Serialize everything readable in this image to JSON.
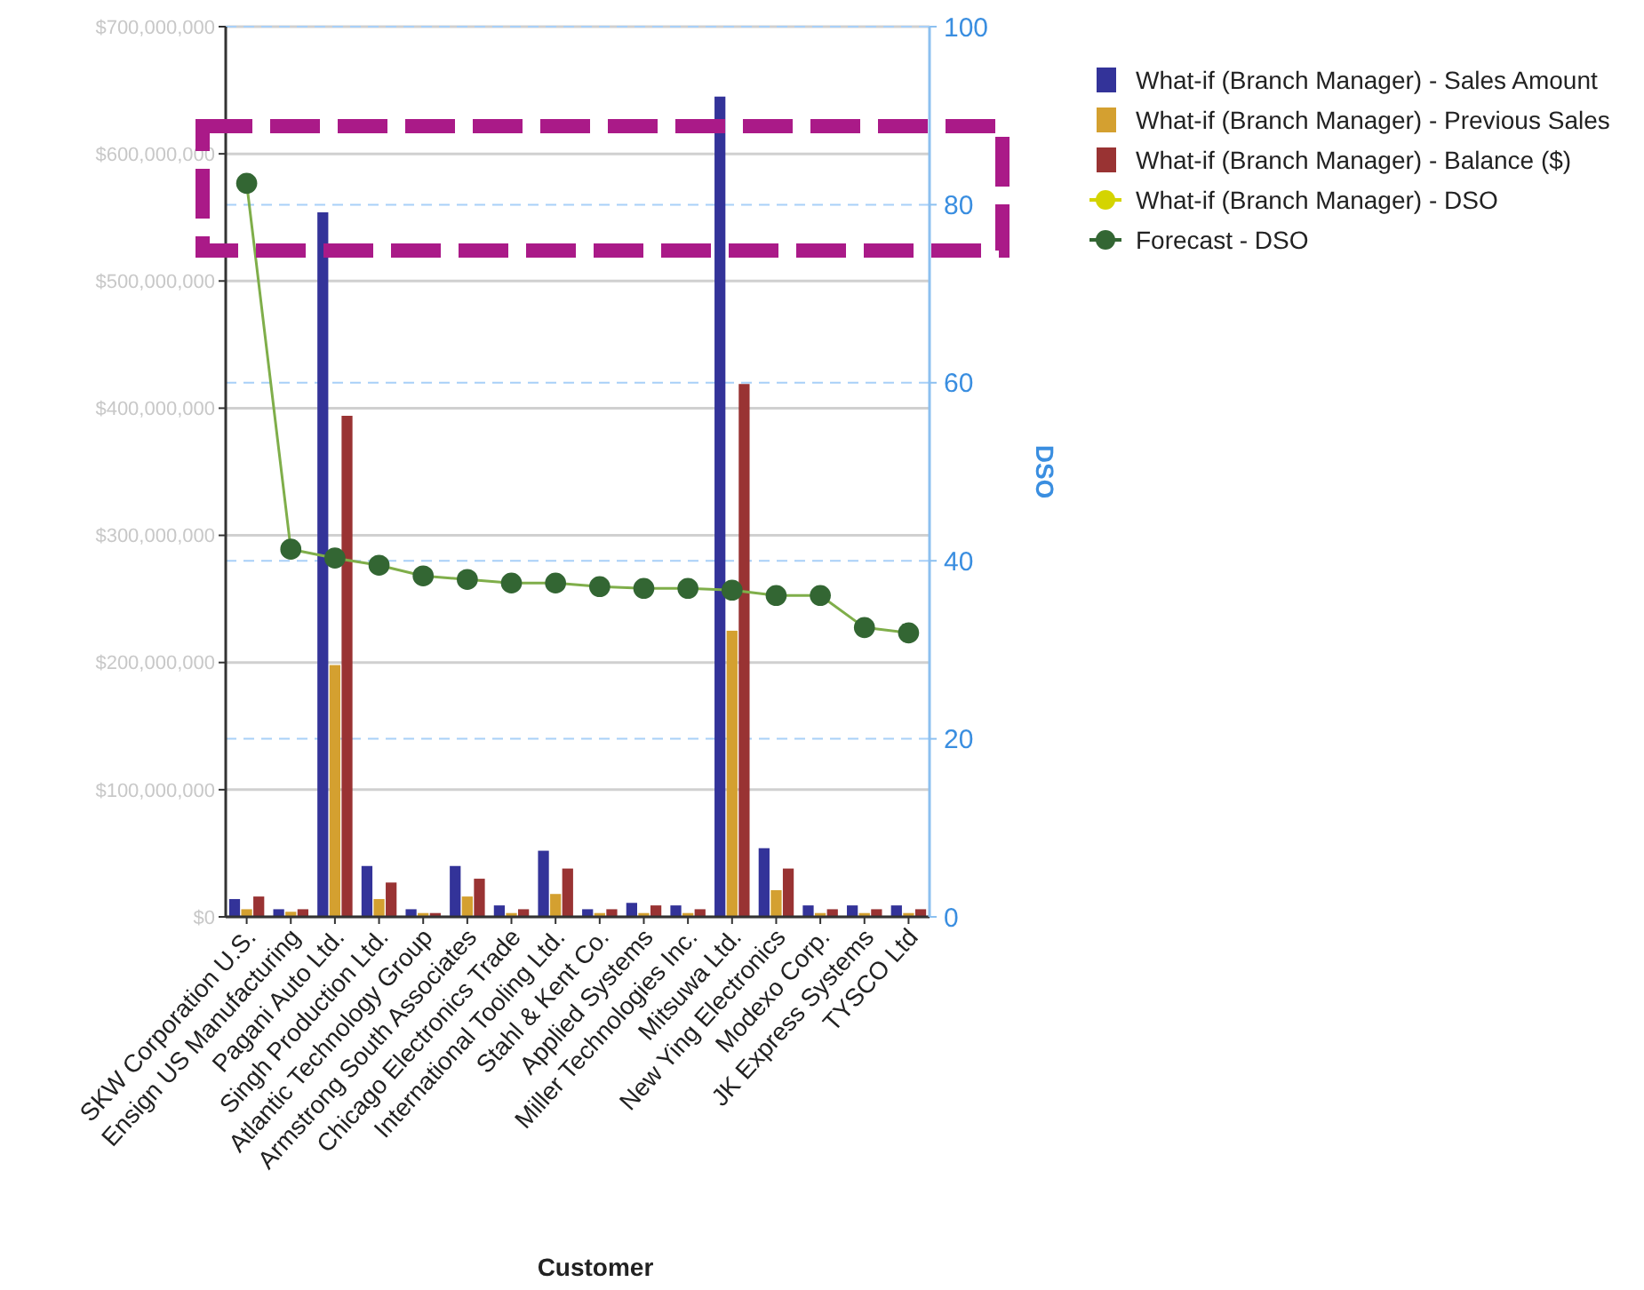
{
  "chart_data": {
    "type": "bar",
    "xlabel": "Customer",
    "y2label": "DSO",
    "categories": [
      "SKW Corporation U.S.",
      "Ensign US Manufacturing",
      "Pagani Auto Ltd.",
      "Singh Production Ltd.",
      "Atlantic Technology Group",
      "Armstrong South Associates",
      "Chicago Electronics Trade",
      "International Tooling Ltd.",
      "Stahl & Kent Co.",
      "Applied Systems",
      "Miller Technologies Inc.",
      "Mitsuwa Ltd.",
      "New Ying Electronics",
      "Modexo Corp.",
      "JK Express Systems",
      "TYSCO Ltd"
    ],
    "series": [
      {
        "name": "What-if (Branch Manager) - Sales Amount",
        "color": "#333399",
        "values": [
          14000000,
          6000000,
          554000000,
          40000000,
          6000000,
          40000000,
          9000000,
          52000000,
          6000000,
          11000000,
          9000000,
          645000000,
          54000000,
          9000000,
          9000000,
          9000000
        ]
      },
      {
        "name": "What-if (Branch Manager) - Previous Sales",
        "color": "#d4a030",
        "values": [
          6000000,
          4000000,
          198000000,
          14000000,
          3000000,
          16000000,
          3000000,
          18000000,
          3000000,
          3000000,
          3000000,
          225000000,
          21000000,
          3000000,
          3000000,
          3000000
        ]
      },
      {
        "name": "What-if (Branch Manager) - Balance ($)",
        "color": "#993333",
        "values": [
          16000000,
          6000000,
          394000000,
          27000000,
          3000000,
          30000000,
          6000000,
          38000000,
          6000000,
          9000000,
          6000000,
          419000000,
          38000000,
          6000000,
          6000000,
          6000000
        ]
      },
      {
        "name": "What-if (Branch Manager) - DSO",
        "color": "#d4d400",
        "type": "line",
        "axis": "y2",
        "marker": "circle",
        "values": [
          null,
          null,
          null,
          null,
          null,
          null,
          null,
          null,
          null,
          null,
          null,
          null,
          null,
          null,
          null,
          null
        ]
      },
      {
        "name": "Forecast - DSO",
        "color": "#336633",
        "type": "line",
        "axis": "y2",
        "marker": "circle",
        "values": [
          82.4,
          41.3,
          40.3,
          39.5,
          38.3,
          37.9,
          37.5,
          37.5,
          37.1,
          36.9,
          36.9,
          36.7,
          36.1,
          36.1,
          32.5,
          31.9
        ]
      }
    ],
    "ylim": [
      0,
      700000000
    ],
    "yticks": [
      {
        "value": 0,
        "label": "$0"
      },
      {
        "value": 100000000,
        "label": "$100,000,000"
      },
      {
        "value": 200000000,
        "label": "$200,000,000"
      },
      {
        "value": 300000000,
        "label": "$300,000,000"
      },
      {
        "value": 400000000,
        "label": "$400,000,000"
      },
      {
        "value": 500000000,
        "label": "$500,000,000"
      },
      {
        "value": 600000000,
        "label": "$600,000,000"
      },
      {
        "value": 700000000,
        "label": "$700,000,000"
      }
    ],
    "y2lim": [
      0,
      100
    ],
    "y2ticks": [
      0,
      20,
      40,
      60,
      80,
      100
    ],
    "grid": true,
    "legend": "top right"
  }
}
